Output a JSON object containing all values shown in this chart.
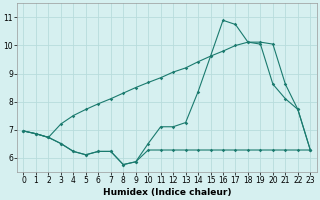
{
  "title": "",
  "xlabel": "Humidex (Indice chaleur)",
  "background_color": "#d6f0f0",
  "grid_color": "#b8dcdc",
  "line_color": "#1a7a6e",
  "xlim": [
    -0.5,
    23.5
  ],
  "ylim": [
    5.5,
    11.5
  ],
  "yticks": [
    6,
    7,
    8,
    9,
    10,
    11
  ],
  "xticks": [
    0,
    1,
    2,
    3,
    4,
    5,
    6,
    7,
    8,
    9,
    10,
    11,
    12,
    13,
    14,
    15,
    16,
    17,
    18,
    19,
    20,
    21,
    22,
    23
  ],
  "line1_x": [
    0,
    1,
    2,
    3,
    4,
    5,
    6,
    7,
    8,
    9,
    10,
    11,
    12,
    13,
    14,
    15,
    16,
    17,
    18,
    19,
    20,
    21,
    22,
    23
  ],
  "line1_y": [
    6.95,
    6.85,
    6.72,
    6.5,
    6.22,
    6.1,
    6.22,
    6.22,
    5.75,
    5.85,
    6.27,
    6.27,
    6.27,
    6.27,
    6.27,
    6.27,
    6.27,
    6.27,
    6.27,
    6.27,
    6.27,
    6.27,
    6.27,
    6.27
  ],
  "line2_x": [
    0,
    1,
    2,
    3,
    4,
    5,
    6,
    7,
    8,
    9,
    10,
    11,
    12,
    13,
    14,
    15,
    16,
    17,
    18,
    19,
    20,
    21,
    22,
    23
  ],
  "line2_y": [
    6.95,
    6.85,
    6.72,
    7.2,
    7.5,
    7.72,
    7.92,
    8.1,
    8.3,
    8.5,
    8.68,
    8.85,
    9.05,
    9.2,
    9.42,
    9.62,
    9.8,
    10.0,
    10.12,
    10.12,
    10.05,
    8.62,
    7.72,
    6.27
  ],
  "line3_x": [
    0,
    1,
    2,
    3,
    4,
    5,
    6,
    7,
    8,
    9,
    10,
    11,
    12,
    13,
    14,
    15,
    16,
    17,
    18,
    19,
    20,
    21,
    22,
    23
  ],
  "line3_y": [
    6.95,
    6.85,
    6.72,
    6.5,
    6.22,
    6.1,
    6.22,
    6.22,
    5.75,
    5.85,
    6.5,
    7.1,
    7.1,
    7.25,
    8.35,
    9.62,
    10.9,
    10.75,
    10.12,
    10.05,
    8.62,
    8.1,
    7.72,
    6.27
  ]
}
